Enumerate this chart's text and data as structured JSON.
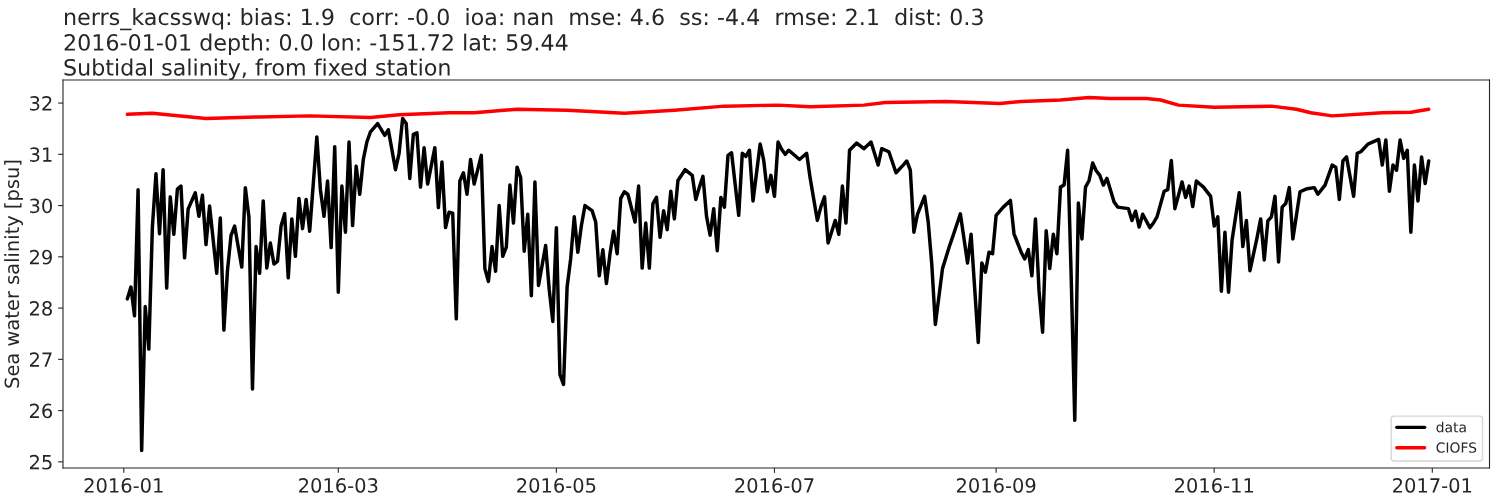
{
  "chart_data": {
    "type": "line",
    "title": "nerrs_kacsswq: bias: 1.9  corr: -0.0  ioa: nan  mse: 4.6  ss: -4.4  rmse: 2.1  dist: 0.3",
    "subtitle": "2016-01-01 depth: 0.0 lon: -151.72 lat: 59.44\nSubtidal salinity, from fixed station",
    "ylabel": "Sea water salinity [psu]",
    "xlim": [
      "2015-12-15",
      "2017-01-17"
    ],
    "ylim": [
      24.88,
      32.45
    ],
    "xticks": [
      "2016-01",
      "2016-03",
      "2016-05",
      "2016-07",
      "2016-09",
      "2016-11",
      "2017-01"
    ],
    "yticks": [
      25,
      26,
      27,
      28,
      29,
      30,
      31,
      32
    ],
    "grid": false,
    "legend": "bottom right",
    "line_style": "solid",
    "series": [
      {
        "name": "data",
        "color": "#000000",
        "x": [
          "2016-01-02",
          "2016-01-03",
          "2016-01-04",
          "2016-01-05",
          "2016-01-06",
          "2016-01-07",
          "2016-01-08",
          "2016-01-09",
          "2016-01-10",
          "2016-01-11",
          "2016-01-12",
          "2016-01-13",
          "2016-01-14",
          "2016-01-15",
          "2016-01-16",
          "2016-01-17",
          "2016-01-18",
          "2016-01-19",
          "2016-01-21",
          "2016-01-22",
          "2016-01-23",
          "2016-01-24",
          "2016-01-25",
          "2016-01-27",
          "2016-01-28",
          "2016-01-29",
          "2016-01-30",
          "2016-01-31",
          "2016-02-01",
          "2016-02-03",
          "2016-02-04",
          "2016-02-05",
          "2016-02-06",
          "2016-02-07",
          "2016-02-08",
          "2016-02-09",
          "2016-02-10",
          "2016-02-11",
          "2016-02-12",
          "2016-02-13",
          "2016-02-14",
          "2016-02-15",
          "2016-02-16",
          "2016-02-17",
          "2016-02-18",
          "2016-02-19",
          "2016-02-20",
          "2016-02-21",
          "2016-02-22",
          "2016-02-24",
          "2016-02-25",
          "2016-02-26",
          "2016-02-27",
          "2016-02-28",
          "2016-02-29",
          "2016-03-01",
          "2016-03-02",
          "2016-03-03",
          "2016-03-04",
          "2016-03-05",
          "2016-03-06",
          "2016-03-07",
          "2016-03-08",
          "2016-03-09",
          "2016-03-10",
          "2016-03-12",
          "2016-03-14",
          "2016-03-15",
          "2016-03-17",
          "2016-03-18",
          "2016-03-19",
          "2016-03-20",
          "2016-03-21",
          "2016-03-22",
          "2016-03-23",
          "2016-03-24",
          "2016-03-25",
          "2016-03-26",
          "2016-03-28",
          "2016-03-29",
          "2016-03-30",
          "2016-03-31",
          "2016-04-01",
          "2016-04-02",
          "2016-04-03",
          "2016-04-04",
          "2016-04-05",
          "2016-04-06",
          "2016-04-07",
          "2016-04-08",
          "2016-04-10",
          "2016-04-11",
          "2016-04-12",
          "2016-04-13",
          "2016-04-14",
          "2016-04-15",
          "2016-04-16",
          "2016-04-17",
          "2016-04-18",
          "2016-04-19",
          "2016-04-20",
          "2016-04-21",
          "2016-04-22",
          "2016-04-23",
          "2016-04-24",
          "2016-04-25",
          "2016-04-26",
          "2016-04-28",
          "2016-04-29",
          "2016-04-30",
          "2016-05-01",
          "2016-05-02",
          "2016-05-03",
          "2016-05-04",
          "2016-05-05",
          "2016-05-06",
          "2016-05-07",
          "2016-05-08",
          "2016-05-09",
          "2016-05-11",
          "2016-05-12",
          "2016-05-13",
          "2016-05-14",
          "2016-05-15",
          "2016-05-16",
          "2016-05-17",
          "2016-05-18",
          "2016-05-19",
          "2016-05-20",
          "2016-05-21",
          "2016-05-23",
          "2016-05-24",
          "2016-05-25",
          "2016-05-26",
          "2016-05-27",
          "2016-05-28",
          "2016-05-29",
          "2016-05-30",
          "2016-05-31",
          "2016-06-01",
          "2016-06-02",
          "2016-06-03",
          "2016-06-04",
          "2016-06-06",
          "2016-06-08",
          "2016-06-09",
          "2016-06-10",
          "2016-06-11",
          "2016-06-12",
          "2016-06-13",
          "2016-06-14",
          "2016-06-15",
          "2016-06-16",
          "2016-06-17",
          "2016-06-18",
          "2016-06-19",
          "2016-06-21",
          "2016-06-22",
          "2016-06-23",
          "2016-06-24",
          "2016-06-25",
          "2016-06-27",
          "2016-06-28",
          "2016-06-29",
          "2016-06-30",
          "2016-07-01",
          "2016-07-02",
          "2016-07-03",
          "2016-07-04",
          "2016-07-05",
          "2016-07-08",
          "2016-07-10",
          "2016-07-11",
          "2016-07-13",
          "2016-07-14",
          "2016-07-15",
          "2016-07-16",
          "2016-07-18",
          "2016-07-19",
          "2016-07-20",
          "2016-07-21",
          "2016-07-22",
          "2016-07-24",
          "2016-07-26",
          "2016-07-28",
          "2016-07-30",
          "2016-07-31",
          "2016-08-02",
          "2016-08-04",
          "2016-08-06",
          "2016-08-07",
          "2016-08-08",
          "2016-08-09",
          "2016-08-10",
          "2016-08-12",
          "2016-08-13",
          "2016-08-14",
          "2016-08-15",
          "2016-08-17",
          "2016-08-19",
          "2016-08-20",
          "2016-08-22",
          "2016-08-24",
          "2016-08-25",
          "2016-08-27",
          "2016-08-28",
          "2016-08-29",
          "2016-08-30",
          "2016-08-31",
          "2016-09-01",
          "2016-09-03",
          "2016-09-05",
          "2016-09-06",
          "2016-09-08",
          "2016-09-09",
          "2016-09-10",
          "2016-09-11",
          "2016-09-12",
          "2016-09-13",
          "2016-09-14",
          "2016-09-15",
          "2016-09-16",
          "2016-09-17",
          "2016-09-18",
          "2016-09-19",
          "2016-09-20",
          "2016-09-21",
          "2016-09-22",
          "2016-09-23",
          "2016-09-24",
          "2016-09-25",
          "2016-09-26",
          "2016-09-27",
          "2016-09-28",
          "2016-09-29",
          "2016-09-30",
          "2016-10-01",
          "2016-10-02",
          "2016-10-04",
          "2016-10-05",
          "2016-10-08",
          "2016-10-09",
          "2016-10-10",
          "2016-10-11",
          "2016-10-12",
          "2016-10-14",
          "2016-10-15",
          "2016-10-16",
          "2016-10-18",
          "2016-10-19",
          "2016-10-20",
          "2016-10-21",
          "2016-10-23",
          "2016-10-24",
          "2016-10-25",
          "2016-10-26",
          "2016-10-27",
          "2016-10-29",
          "2016-10-31",
          "2016-11-01",
          "2016-11-02",
          "2016-11-03",
          "2016-11-04",
          "2016-11-05",
          "2016-11-06",
          "2016-11-08",
          "2016-11-09",
          "2016-11-10",
          "2016-11-11",
          "2016-11-13",
          "2016-11-14",
          "2016-11-15",
          "2016-11-16",
          "2016-11-17",
          "2016-11-18",
          "2016-11-19",
          "2016-11-20",
          "2016-11-21",
          "2016-11-22",
          "2016-11-23",
          "2016-11-24",
          "2016-11-25",
          "2016-11-27",
          "2016-11-29",
          "2016-11-30",
          "2016-12-02",
          "2016-12-04",
          "2016-12-05",
          "2016-12-06",
          "2016-12-07",
          "2016-12-08",
          "2016-12-10",
          "2016-12-11",
          "2016-12-12",
          "2016-12-14",
          "2016-12-17",
          "2016-12-18",
          "2016-12-19",
          "2016-12-20",
          "2016-12-21",
          "2016-12-22",
          "2016-12-23",
          "2016-12-24",
          "2016-12-25",
          "2016-12-26",
          "2016-12-27",
          "2016-12-28",
          "2016-12-29",
          "2016-12-30",
          "2016-12-31"
        ],
        "values": [
          28.18,
          28.41,
          27.85,
          30.31,
          25.22,
          28.03,
          27.2,
          29.58,
          30.62,
          29.45,
          30.7,
          28.39,
          30.17,
          29.44,
          30.32,
          30.38,
          28.98,
          29.93,
          30.25,
          29.79,
          30.2,
          29.24,
          29.99,
          28.68,
          29.76,
          27.57,
          28.73,
          29.42,
          29.6,
          28.8,
          30.35,
          29.78,
          26.42,
          29.2,
          28.68,
          30.09,
          28.78,
          29.27,
          28.86,
          28.91,
          29.6,
          29.84,
          28.59,
          29.74,
          29.01,
          30.14,
          29.55,
          30.12,
          29.5,
          31.34,
          30.31,
          29.79,
          30.48,
          29.18,
          31.15,
          28.31,
          30.38,
          29.48,
          31.24,
          29.61,
          30.77,
          30.22,
          30.9,
          31.24,
          31.44,
          31.6,
          31.37,
          31.48,
          30.7,
          31.02,
          31.7,
          31.6,
          30.53,
          31.39,
          31.42,
          30.36,
          31.13,
          30.42,
          31.13,
          29.96,
          30.85,
          29.57,
          29.87,
          29.85,
          27.79,
          30.48,
          30.64,
          30.22,
          30.9,
          30.42,
          30.98,
          28.77,
          28.52,
          29.2,
          28.72,
          30.0,
          29.01,
          29.19,
          30.4,
          29.66,
          30.75,
          30.55,
          29.11,
          29.83,
          28.24,
          30.46,
          28.44,
          29.22,
          28.36,
          27.74,
          29.57,
          26.7,
          26.51,
          28.41,
          28.96,
          29.78,
          29.09,
          29.61,
          30.0,
          29.9,
          29.68,
          28.63,
          29.14,
          28.48,
          29.06,
          29.5,
          29.06,
          30.14,
          30.27,
          30.22,
          29.68,
          30.38,
          28.78,
          29.66,
          28.78,
          30.04,
          30.16,
          29.38,
          29.9,
          29.53,
          30.28,
          29.74,
          30.49,
          30.7,
          30.59,
          30.12,
          30.36,
          30.57,
          29.79,
          29.42,
          29.94,
          29.12,
          30.16,
          29.97,
          30.98,
          31.03,
          29.81,
          31.02,
          30.96,
          31.08,
          30.09,
          31.2,
          30.88,
          30.27,
          30.59,
          30.18,
          31.24,
          31.1,
          31.0,
          31.08,
          30.9,
          31.02,
          30.53,
          29.71,
          29.98,
          30.17,
          29.27,
          29.71,
          29.44,
          30.38,
          29.66,
          31.08,
          31.22,
          31.11,
          31.24,
          30.79,
          31.11,
          31.05,
          30.64,
          30.79,
          30.87,
          30.69,
          29.48,
          29.83,
          30.18,
          29.68,
          28.86,
          27.68,
          28.77,
          29.22,
          29.42,
          29.84,
          28.88,
          29.44,
          27.33,
          28.88,
          28.7,
          29.09,
          29.06,
          29.81,
          29.97,
          30.1,
          29.45,
          29.09,
          28.96,
          29.14,
          28.63,
          29.74,
          28.34,
          27.53,
          29.51,
          28.77,
          29.44,
          29.06,
          30.36,
          30.4,
          31.08,
          28.6,
          25.81,
          30.05,
          29.35,
          30.36,
          30.49,
          30.83,
          30.68,
          30.59,
          30.4,
          30.53,
          30.07,
          29.97,
          29.94,
          29.71,
          29.89,
          29.58,
          29.83,
          29.57,
          29.66,
          29.78,
          30.28,
          30.31,
          30.88,
          29.94,
          30.46,
          30.16,
          30.38,
          29.98,
          30.48,
          30.36,
          30.18,
          29.6,
          29.78,
          28.33,
          29.48,
          28.31,
          29.33,
          30.25,
          29.2,
          29.71,
          28.73,
          29.38,
          29.74,
          28.94,
          29.7,
          29.78,
          30.18,
          28.9,
          29.97,
          30.04,
          30.35,
          29.35,
          29.81,
          30.27,
          30.33,
          30.35,
          30.22,
          30.4,
          30.79,
          30.75,
          30.12,
          30.87,
          30.95,
          30.18,
          31.02,
          31.05,
          31.2,
          31.29,
          30.79,
          31.28,
          30.28,
          30.79,
          30.69,
          31.28,
          30.92,
          31.08,
          29.48,
          30.79,
          30.09,
          30.95,
          30.43,
          30.87
        ]
      },
      {
        "name": "CIOFS",
        "color": "#ff0000",
        "x": [
          "2016-01-02",
          "2016-01-09",
          "2016-01-24",
          "2016-02-08",
          "2016-02-22",
          "2016-03-10",
          "2016-03-18",
          "2016-04-01",
          "2016-04-08",
          "2016-04-20",
          "2016-05-04",
          "2016-05-20",
          "2016-06-03",
          "2016-06-17",
          "2016-07-02",
          "2016-07-11",
          "2016-07-26",
          "2016-08-01",
          "2016-08-18",
          "2016-09-02",
          "2016-09-08",
          "2016-09-19",
          "2016-09-27",
          "2016-10-03",
          "2016-10-13",
          "2016-10-17",
          "2016-10-22",
          "2016-11-01",
          "2016-11-17",
          "2016-11-24",
          "2016-11-28",
          "2016-12-04",
          "2016-12-18",
          "2016-12-26",
          "2016-12-31"
        ],
        "values": [
          31.78,
          31.8,
          31.7,
          31.73,
          31.75,
          31.72,
          31.77,
          31.81,
          31.81,
          31.88,
          31.86,
          31.8,
          31.86,
          31.94,
          31.96,
          31.93,
          31.96,
          32.01,
          32.03,
          31.99,
          32.03,
          32.06,
          32.11,
          32.09,
          32.09,
          32.06,
          31.96,
          31.92,
          31.94,
          31.88,
          31.81,
          31.75,
          31.81,
          31.82,
          31.88
        ]
      }
    ]
  }
}
